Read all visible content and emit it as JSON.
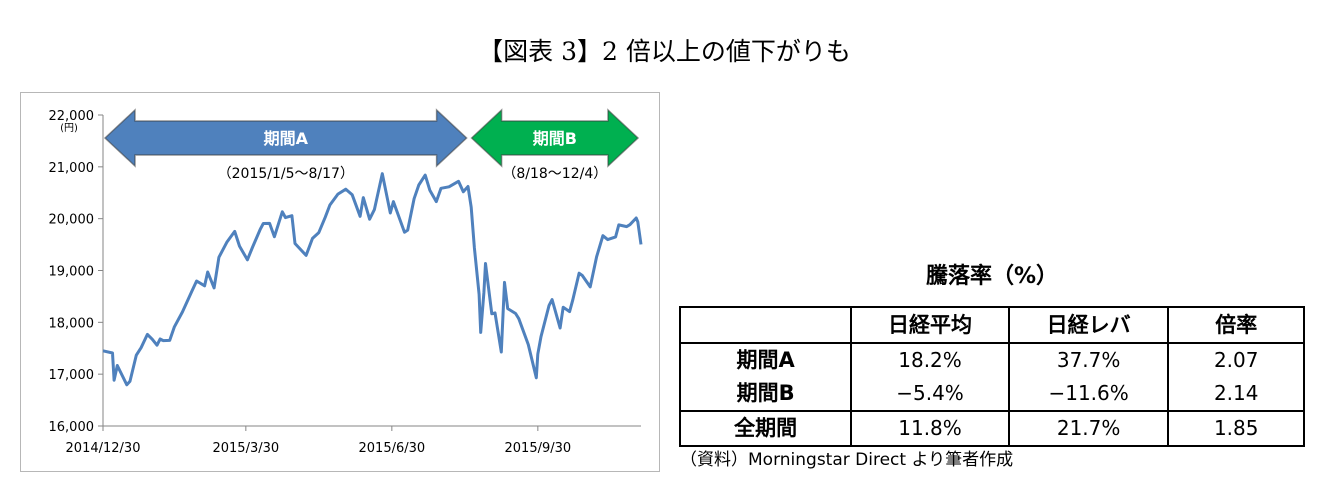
{
  "figure_title": "【図表 3】2 倍以上の値下がりも",
  "chart_data": {
    "type": "line",
    "y_unit": "(円)",
    "yticks": [
      16000,
      17000,
      18000,
      19000,
      20000,
      21000,
      22000
    ],
    "ytick_labels": [
      "16,000",
      "17,000",
      "18,000",
      "19,000",
      "20,000",
      "21,000",
      "22,000"
    ],
    "ylim": [
      16000,
      22000
    ],
    "xticks": [
      "2014-12-30",
      "2015-03-30",
      "2015-06-30",
      "2015-09-30"
    ],
    "xtick_labels": [
      "2014/12/30",
      "2015/3/30",
      "2015/6/30",
      "2015/9/30"
    ],
    "xlim": [
      "2014-12-30",
      "2015-12-04"
    ],
    "grid": false,
    "line_color": "#4f81bd",
    "series": [
      {
        "values": [
          [
            "2014-12-30",
            17450
          ],
          [
            "2015-01-05",
            17408
          ],
          [
            "2015-01-06",
            16883
          ],
          [
            "2015-01-08",
            17167
          ],
          [
            "2015-01-14",
            16795
          ],
          [
            "2015-01-16",
            16864
          ],
          [
            "2015-01-20",
            17366
          ],
          [
            "2015-01-23",
            17511
          ],
          [
            "2015-01-27",
            17768
          ],
          [
            "2015-01-30",
            17674
          ],
          [
            "2015-02-02",
            17558
          ],
          [
            "2015-02-04",
            17678
          ],
          [
            "2015-02-06",
            17648
          ],
          [
            "2015-02-10",
            17652
          ],
          [
            "2015-02-13",
            17913
          ],
          [
            "2015-02-18",
            18199
          ],
          [
            "2015-02-24",
            18603
          ],
          [
            "2015-02-27",
            18797
          ],
          [
            "2015-03-04",
            18704
          ],
          [
            "2015-03-06",
            18971
          ],
          [
            "2015-03-10",
            18665
          ],
          [
            "2015-03-13",
            19254
          ],
          [
            "2015-03-18",
            19544
          ],
          [
            "2015-03-23",
            19754
          ],
          [
            "2015-03-26",
            19471
          ],
          [
            "2015-03-31",
            19206
          ],
          [
            "2015-04-03",
            19435
          ],
          [
            "2015-04-08",
            19790
          ],
          [
            "2015-04-10",
            19907
          ],
          [
            "2015-04-14",
            19908
          ],
          [
            "2015-04-17",
            19653
          ],
          [
            "2015-04-22",
            20133
          ],
          [
            "2015-04-24",
            20020
          ],
          [
            "2015-04-28",
            20058
          ],
          [
            "2015-04-30",
            19520
          ],
          [
            "2015-05-07",
            19292
          ],
          [
            "2015-05-11",
            19620
          ],
          [
            "2015-05-15",
            19732
          ],
          [
            "2015-05-19",
            20026
          ],
          [
            "2015-05-22",
            20264
          ],
          [
            "2015-05-27",
            20473
          ],
          [
            "2015-06-01",
            20569
          ],
          [
            "2015-06-05",
            20461
          ],
          [
            "2015-06-10",
            20046
          ],
          [
            "2015-06-12",
            20407
          ],
          [
            "2015-06-16",
            19990
          ],
          [
            "2015-06-19",
            20174
          ],
          [
            "2015-06-24",
            20868
          ],
          [
            "2015-06-29",
            20110
          ],
          [
            "2015-07-01",
            20330
          ],
          [
            "2015-07-08",
            19738
          ],
          [
            "2015-07-10",
            19780
          ],
          [
            "2015-07-14",
            20385
          ],
          [
            "2015-07-17",
            20650
          ],
          [
            "2015-07-21",
            20841
          ],
          [
            "2015-07-24",
            20545
          ],
          [
            "2015-07-28",
            20329
          ],
          [
            "2015-07-31",
            20585
          ],
          [
            "2015-08-05",
            20614
          ],
          [
            "2015-08-11",
            20720
          ],
          [
            "2015-08-14",
            20519
          ],
          [
            "2015-08-17",
            20620
          ],
          [
            "2015-08-19",
            20222
          ],
          [
            "2015-08-21",
            19435
          ],
          [
            "2015-08-24",
            18540
          ],
          [
            "2015-08-25",
            17806
          ],
          [
            "2015-08-27",
            18574
          ],
          [
            "2015-08-28",
            19136
          ],
          [
            "2015-09-01",
            18165
          ],
          [
            "2015-09-03",
            18182
          ],
          [
            "2015-09-07",
            17427
          ],
          [
            "2015-09-09",
            18770
          ],
          [
            "2015-09-11",
            18264
          ],
          [
            "2015-09-16",
            18171
          ],
          [
            "2015-09-18",
            18070
          ],
          [
            "2015-09-24",
            17571
          ],
          [
            "2015-09-29",
            16930
          ],
          [
            "2015-09-30",
            17388
          ],
          [
            "2015-10-02",
            17725
          ],
          [
            "2015-10-07",
            18322
          ],
          [
            "2015-10-09",
            18438
          ],
          [
            "2015-10-14",
            17891
          ],
          [
            "2015-10-16",
            18291
          ],
          [
            "2015-10-20",
            18207
          ],
          [
            "2015-10-22",
            18435
          ],
          [
            "2015-10-26",
            18947
          ],
          [
            "2015-10-28",
            18903
          ],
          [
            "2015-11-02",
            18683
          ],
          [
            "2015-11-06",
            19265
          ],
          [
            "2015-11-10",
            19671
          ],
          [
            "2015-11-13",
            19597
          ],
          [
            "2015-11-18",
            19649
          ],
          [
            "2015-11-20",
            19879
          ],
          [
            "2015-11-25",
            19847
          ],
          [
            "2015-11-27",
            19883
          ],
          [
            "2015-12-01",
            20012
          ],
          [
            "2015-12-02",
            19939
          ],
          [
            "2015-12-04",
            19504
          ]
        ]
      }
    ],
    "annotations": [
      {
        "label": "期間A",
        "range_text": "（2015/1/5～8/17）",
        "from": "2014-12-30",
        "to": "2015-08-18",
        "color": "#4f81bd"
      },
      {
        "label": "期間B",
        "range_text": "（8/18～12/4）",
        "from": "2015-08-18",
        "to": "2015-12-04",
        "color": "#00b050"
      }
    ]
  },
  "table": {
    "title": "騰落率（%）",
    "headers": [
      "",
      "日経平均",
      "日経レバ",
      "倍率"
    ],
    "rows": [
      [
        "期間A",
        "18.2%",
        "37.7%",
        "2.07"
      ],
      [
        "期間B",
        "−5.4%",
        "−11.6%",
        "2.14"
      ],
      [
        "全期間",
        "11.8%",
        "21.7%",
        "1.85"
      ]
    ]
  },
  "source_note": "（資料）Morningstar Direct より筆者作成"
}
